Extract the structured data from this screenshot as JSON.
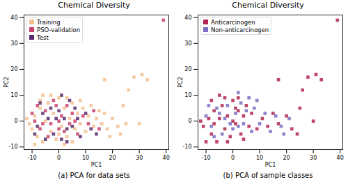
{
  "chart_data": [
    {
      "type": "scatter",
      "title": "Chemical Diversity",
      "caption": "(a) PCA for data sets",
      "x_label": "PC1",
      "y_label": "PC2",
      "xlim": [
        -13,
        41
      ],
      "ylim": [
        -11,
        41
      ],
      "xticks": [
        -10,
        0,
        10,
        20,
        30,
        40
      ],
      "yticks": [
        -10,
        0,
        10,
        20,
        30,
        40
      ],
      "grid": false,
      "legend": "upper left",
      "series": [
        {
          "name": "Training",
          "color": "#f4bf8e",
          "marker": "square",
          "x": [
            -10,
            -9,
            -8,
            -7,
            -6,
            -5,
            -4,
            -3,
            -2,
            -1,
            0,
            1,
            2,
            3,
            4,
            5,
            6,
            7,
            8,
            9,
            10,
            11,
            12,
            13,
            14,
            15,
            16,
            17,
            18,
            20,
            22,
            24,
            25,
            28,
            31,
            33,
            26,
            17,
            -11,
            -9,
            -6,
            -3,
            2,
            5,
            -7,
            0,
            3,
            -12,
            8,
            19,
            23,
            30
          ],
          "y": [
            -3,
            2,
            -6,
            5,
            -8,
            0,
            7,
            -4,
            3,
            -7,
            9,
            -2,
            5,
            -6,
            1,
            7,
            -3,
            3,
            -1,
            5,
            -4,
            2,
            6,
            -2,
            1,
            4,
            -1,
            3,
            -3,
            1,
            -2,
            6,
            -1,
            17,
            18,
            16,
            12,
            16,
            -1,
            -9,
            10,
            10,
            -9,
            -8,
            8,
            -5,
            9,
            1,
            8,
            -6,
            -5,
            -1
          ]
        },
        {
          "name": "PSO-validation",
          "color": "#c7416b",
          "marker": "square",
          "x": [
            -9,
            -7,
            -5,
            -3,
            -1,
            0,
            1,
            2,
            3,
            4,
            5,
            6,
            -8,
            -4,
            -2,
            7,
            9,
            11,
            13,
            -6,
            39,
            15,
            0,
            -10
          ],
          "y": [
            0,
            -3,
            4,
            -1,
            6,
            -3,
            2,
            -4,
            6,
            -1,
            3,
            0,
            6,
            -6,
            8,
            -5,
            2,
            -1,
            4,
            -1,
            39,
            -3,
            0,
            3
          ]
        },
        {
          "name": "Test",
          "color": "#5a2a6c",
          "marker": "square",
          "x": [
            -8,
            -6,
            -4,
            -2,
            0,
            1,
            2,
            3,
            4,
            5,
            6,
            -5,
            -1,
            -3,
            7,
            8,
            10,
            12,
            -9,
            -7,
            3,
            14,
            1
          ],
          "y": [
            -2,
            3,
            1,
            -5,
            4,
            -7,
            1,
            -3,
            8,
            -2,
            5,
            -7,
            1,
            5,
            1,
            -6,
            3,
            -3,
            -5,
            7,
            -8,
            -5,
            10
          ]
        }
      ]
    },
    {
      "type": "scatter",
      "title": "Chemical Diversity",
      "caption": "(b) PCA of sample classes",
      "x_label": "PC1",
      "y_label": "PC2",
      "xlim": [
        -13,
        41
      ],
      "ylim": [
        -11,
        41
      ],
      "xticks": [
        -10,
        0,
        10,
        20,
        30,
        40
      ],
      "yticks": [
        -10,
        0,
        10,
        20,
        30,
        40
      ],
      "grid": false,
      "legend": "upper left",
      "series": [
        {
          "name": "Anticarcinogen",
          "color": "#b3244f",
          "marker": "square",
          "x": [
            -11,
            -9,
            -8,
            -7,
            -6,
            -5,
            -4,
            -3,
            -2,
            -1,
            0,
            1,
            2,
            3,
            4,
            5,
            6,
            7,
            -10,
            -8,
            -5,
            -2,
            0,
            2,
            9,
            11,
            13,
            15,
            17,
            20,
            22,
            25,
            28,
            31,
            33,
            26,
            17,
            39,
            -12,
            -3,
            -7,
            1,
            4,
            24,
            30
          ],
          "y": [
            -2,
            1,
            -5,
            4,
            -8,
            1,
            6,
            -3,
            2,
            -6,
            8,
            -1,
            4,
            -5,
            2,
            6,
            -2,
            3,
            -8,
            8,
            10,
            -8,
            0,
            9,
            -3,
            1,
            -2,
            3,
            -1,
            2,
            -3,
            5,
            17,
            18,
            16,
            12,
            16,
            39,
            0,
            9,
            -1,
            5,
            -7,
            -5,
            0
          ]
        },
        {
          "name": "Non-anticarcinogen",
          "color": "#7a6cc0",
          "marker": "square",
          "x": [
            -10,
            -8,
            -6,
            -4,
            -2,
            0,
            1,
            2,
            3,
            4,
            5,
            6,
            -7,
            -5,
            -1,
            7,
            8,
            10,
            12,
            14,
            16,
            18,
            -9,
            -3,
            2,
            9,
            19,
            21
          ],
          "y": [
            2,
            -2,
            5,
            -5,
            6,
            -3,
            3,
            -2,
            7,
            -1,
            4,
            9,
            -6,
            3,
            -1,
            -4,
            5,
            -1,
            3,
            -4,
            2,
            -2,
            6,
            1,
            11,
            8,
            -5,
            1
          ]
        }
      ]
    }
  ]
}
